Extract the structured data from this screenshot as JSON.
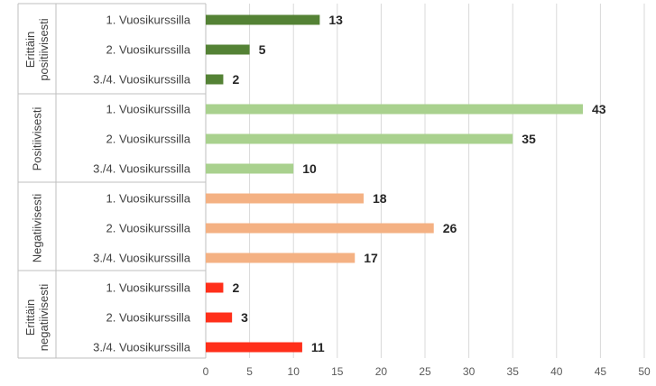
{
  "chart_data": {
    "type": "bar",
    "orientation": "horizontal",
    "title": "",
    "xlabel": "",
    "ylabel": "",
    "xlim": [
      0,
      50
    ],
    "x_ticks": [
      0,
      5,
      10,
      15,
      20,
      25,
      30,
      35,
      40,
      45,
      50
    ],
    "grid": "vertical",
    "legend": "none",
    "groups": [
      {
        "name": "Erittäin positiivisesti",
        "name_lines": [
          "Erittäin",
          "positiivisesti"
        ],
        "color": "#548235",
        "categories": [
          "1. Vuosikurssilla",
          "2. Vuosikurssilla",
          "3./4. Vuosikurssilla"
        ],
        "values": [
          13,
          5,
          2
        ]
      },
      {
        "name": "Positiivisesti",
        "name_lines": [
          "Positiivisesti"
        ],
        "color": "#a9d18e",
        "categories": [
          "1. Vuosikurssilla",
          "2. Vuosikurssilla",
          "3./4. Vuosikurssilla"
        ],
        "values": [
          43,
          35,
          10
        ]
      },
      {
        "name": "Negatiivisesti",
        "name_lines": [
          "Negatiivisesti"
        ],
        "color": "#f4b183",
        "categories": [
          "1. Vuosikurssilla",
          "2. Vuosikurssilla",
          "3./4. Vuosikurssilla"
        ],
        "values": [
          18,
          26,
          17
        ]
      },
      {
        "name": "Erittäin negatiivisesti",
        "name_lines": [
          "Erittäin",
          "negatiivisesti"
        ],
        "color": "#ff2f1a",
        "categories": [
          "1. Vuosikurssilla",
          "2. Vuosikurssilla",
          "3./4. Vuosikurssilla"
        ],
        "values": [
          2,
          3,
          11
        ]
      }
    ]
  }
}
